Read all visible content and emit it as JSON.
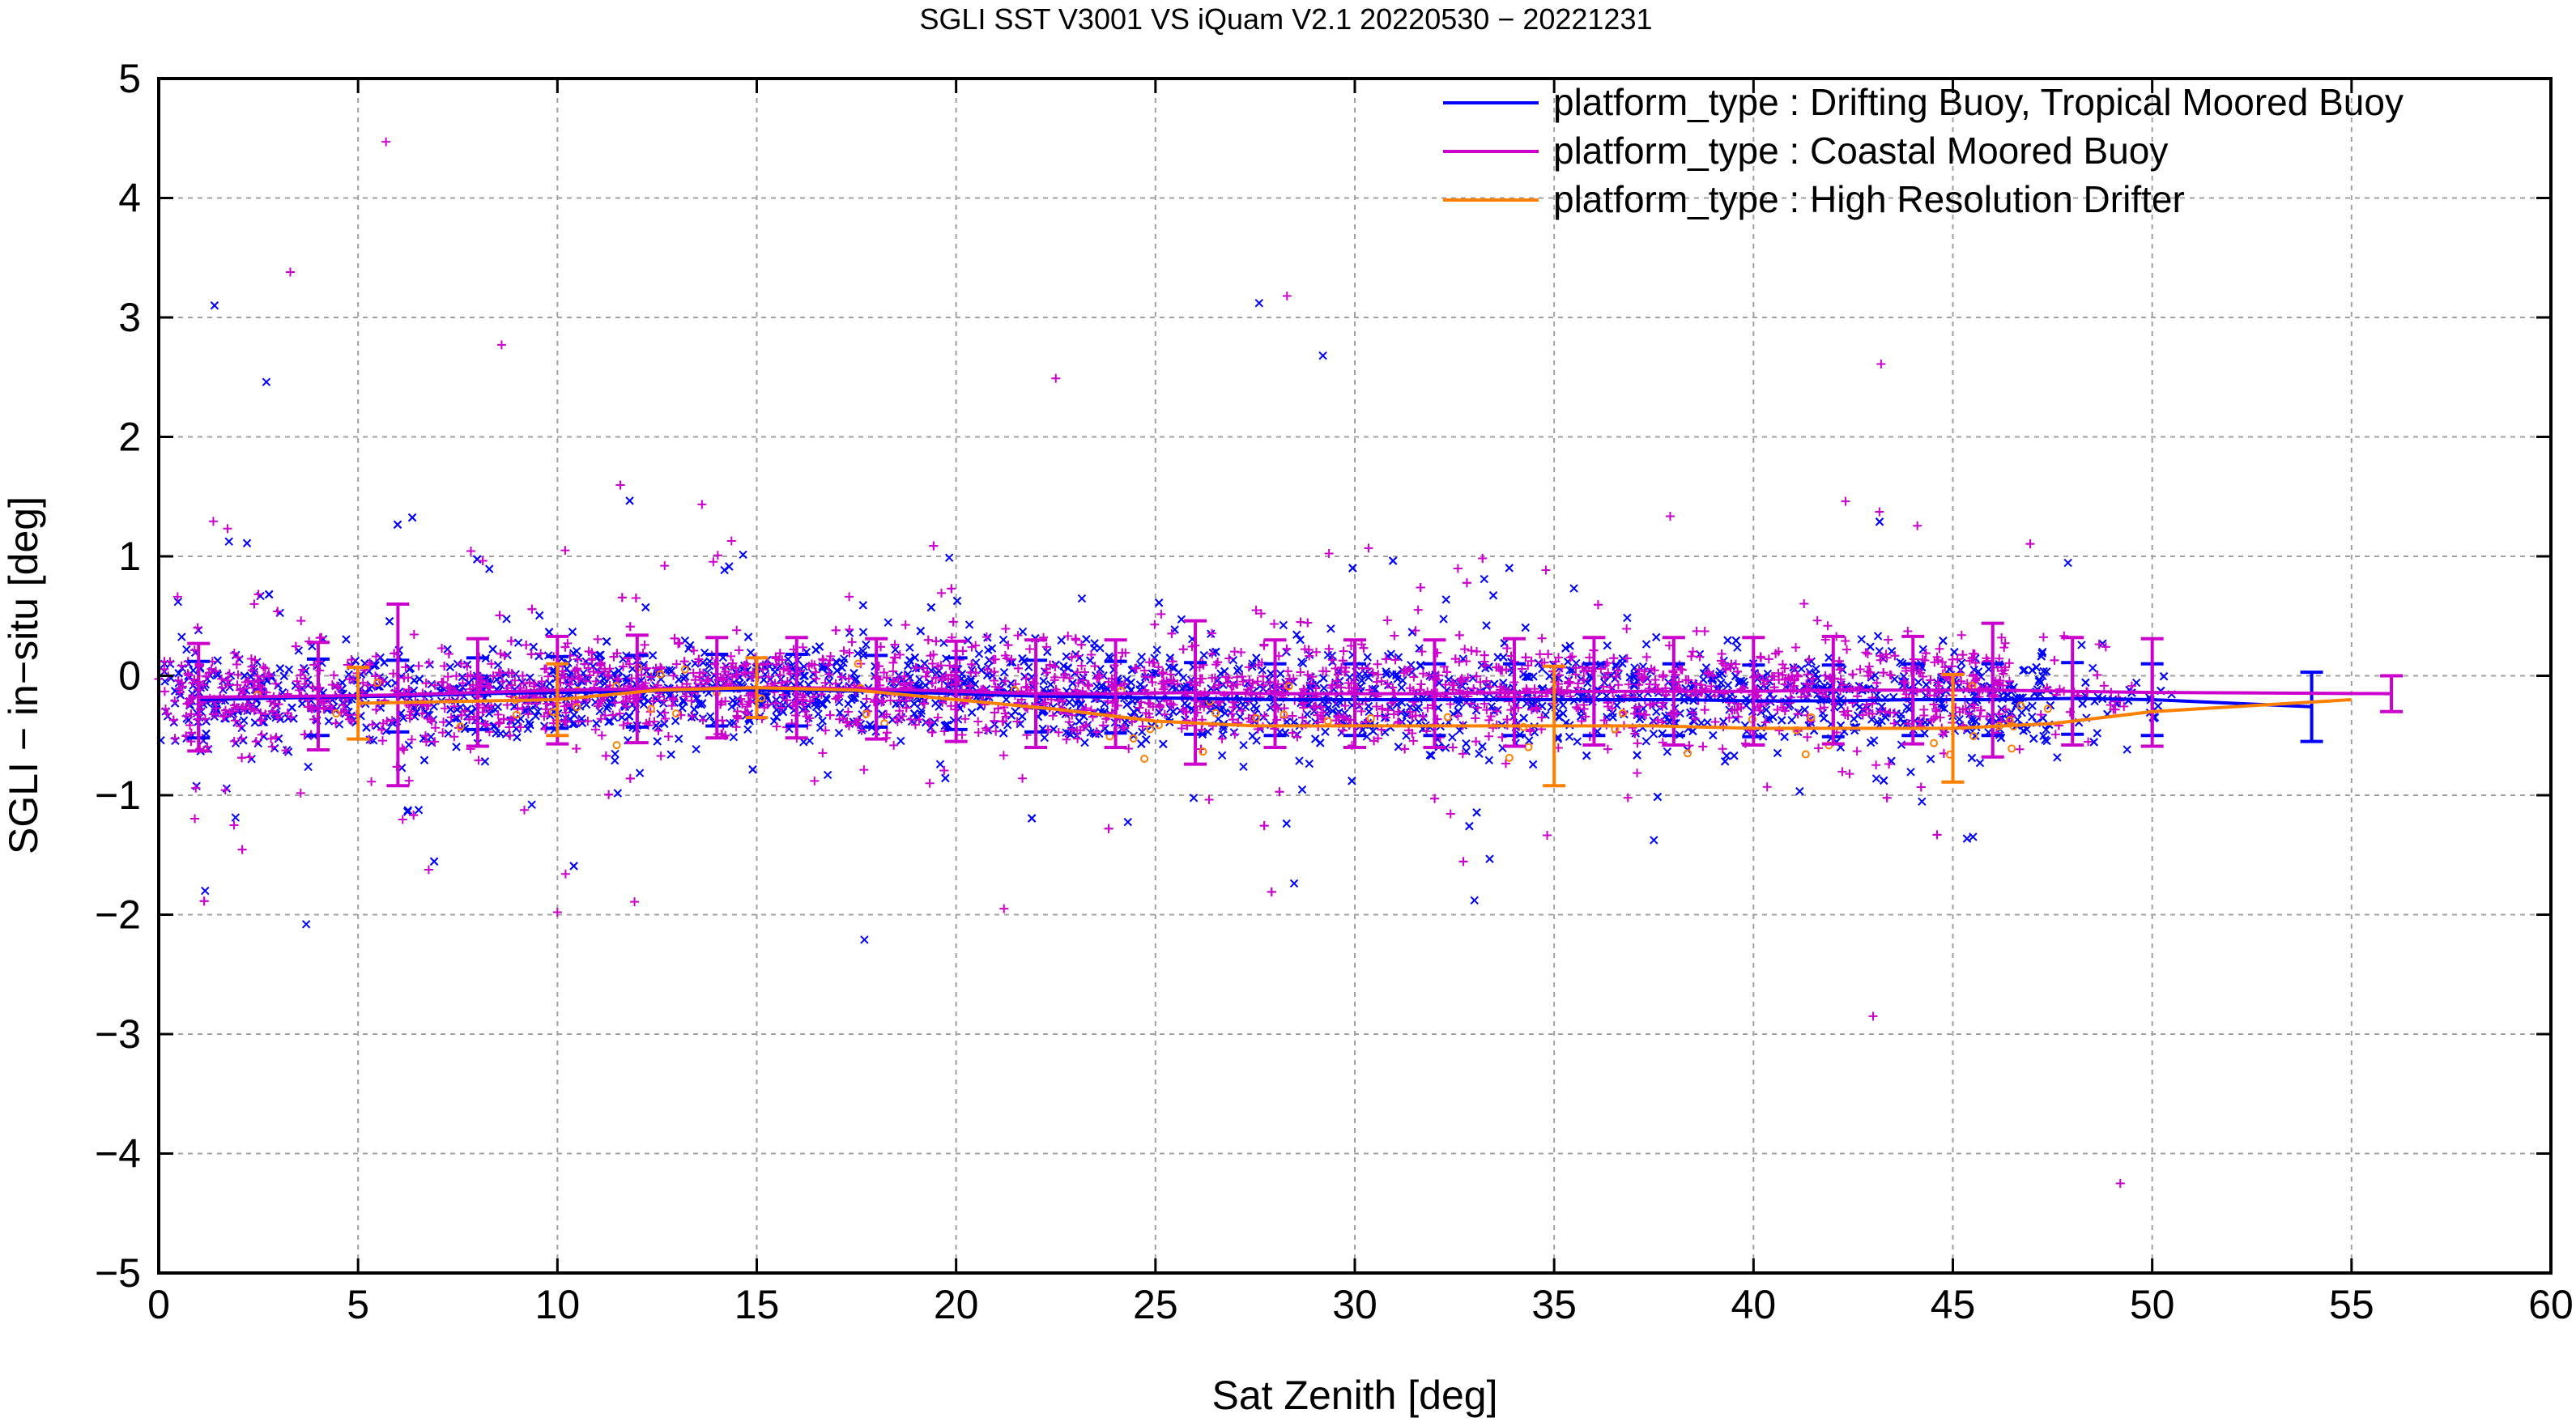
{
  "chart_data": {
    "type": "scatter",
    "title": "SGLI SST V3001 VS iQuam V2.1 20220530 − 20221231",
    "xlabel": "Sat Zenith [deg]",
    "ylabel": "SGLI − in−situ [deg]",
    "xlim": [
      0,
      60
    ],
    "ylim": [
      -5,
      5
    ],
    "xticks": [
      0,
      5,
      10,
      15,
      20,
      25,
      30,
      35,
      40,
      45,
      50,
      55,
      60
    ],
    "yticks": [
      -5,
      -4,
      -3,
      -2,
      -1,
      0,
      1,
      2,
      3,
      4,
      5
    ],
    "xtick_labels": [
      "0",
      "5",
      "10",
      "15",
      "20",
      "25",
      "30",
      "35",
      "40",
      "45",
      "50",
      "55",
      "60"
    ],
    "ytick_labels": [
      "−5",
      "−4",
      "−3",
      "−2",
      "−1",
      "0",
      "1",
      "2",
      "3",
      "4",
      "5"
    ],
    "grid": true,
    "legend_position": "top-right",
    "series": [
      {
        "name": "platform_type : Drifting Buoy, Tropical Moored Buoy",
        "color": "#0000ff",
        "marker": "x",
        "x": [
          1,
          4,
          6,
          8,
          10,
          12,
          14,
          16,
          18,
          20,
          22,
          24,
          26,
          28,
          30,
          32,
          34,
          36,
          38,
          40,
          42,
          44,
          46,
          48,
          50,
          54
        ],
        "y": [
          -0.2,
          -0.18,
          -0.17,
          -0.15,
          -0.14,
          -0.13,
          -0.12,
          -0.12,
          -0.13,
          -0.15,
          -0.17,
          -0.18,
          -0.19,
          -0.2,
          -0.2,
          -0.2,
          -0.2,
          -0.2,
          -0.2,
          -0.21,
          -0.21,
          -0.2,
          -0.2,
          -0.19,
          -0.2,
          -0.26
        ],
        "yerr": [
          0.32,
          0.32,
          0.3,
          0.3,
          0.3,
          0.3,
          0.3,
          0.3,
          0.3,
          0.3,
          0.3,
          0.3,
          0.3,
          0.3,
          0.3,
          0.3,
          0.3,
          0.3,
          0.3,
          0.3,
          0.3,
          0.3,
          0.3,
          0.3,
          0.3,
          0.29
        ]
      },
      {
        "name": "platform_type : Coastal Moored Buoy",
        "color": "#cc00cc",
        "marker": "+",
        "x": [
          1,
          4,
          6,
          8,
          10,
          12,
          14,
          16,
          18,
          20,
          22,
          24,
          26,
          28,
          30,
          32,
          34,
          36,
          38,
          40,
          42,
          44,
          46,
          48,
          50,
          56
        ],
        "y": [
          -0.18,
          -0.17,
          -0.16,
          -0.14,
          -0.12,
          -0.11,
          -0.1,
          -0.1,
          -0.11,
          -0.13,
          -0.15,
          -0.15,
          -0.14,
          -0.15,
          -0.15,
          -0.15,
          -0.14,
          -0.13,
          -0.13,
          -0.13,
          -0.12,
          -0.12,
          -0.12,
          -0.13,
          -0.14,
          -0.15
        ],
        "yerr": [
          0.45,
          0.45,
          0.76,
          0.45,
          0.45,
          0.45,
          0.42,
          0.42,
          0.42,
          0.42,
          0.45,
          0.45,
          0.6,
          0.45,
          0.45,
          0.45,
          0.45,
          0.45,
          0.45,
          0.45,
          0.45,
          0.45,
          0.56,
          0.45,
          0.45,
          0.15
        ]
      },
      {
        "name": "platform_type : High Resolution Drifter",
        "color": "#ff8000",
        "marker": "o",
        "x": [
          5,
          10,
          12.5,
          15,
          17.5,
          20,
          22.5,
          25,
          27.5,
          30,
          32.5,
          35,
          37.5,
          40,
          42.5,
          45,
          47.5,
          50,
          55
        ],
        "y": [
          -0.23,
          -0.2,
          -0.12,
          -0.1,
          -0.12,
          -0.2,
          -0.28,
          -0.38,
          -0.42,
          -0.42,
          -0.42,
          -0.42,
          -0.42,
          -0.44,
          -0.44,
          -0.44,
          -0.4,
          -0.3,
          -0.2
        ],
        "yerr": [
          0.3,
          0.3,
          0.0,
          0.25,
          0.0,
          0.0,
          0.0,
          0.0,
          0.0,
          0.0,
          0.0,
          0.5,
          0.0,
          0.0,
          0.0,
          0.45,
          0.0,
          0.0,
          0.0
        ]
      }
    ],
    "notable_outliers": [
      {
        "series": "platform_type : Coastal Moored Buoy",
        "x": 5.7,
        "y": 4.47
      },
      {
        "series": "platform_type : Drifting Buoy, Tropical Moored Buoy",
        "x": 1.4,
        "y": 3.1
      },
      {
        "series": "platform_type : Coastal Moored Buoy",
        "x": 3.3,
        "y": 3.38
      },
      {
        "series": "platform_type : Coastal Moored Buoy",
        "x": 28.3,
        "y": 3.18
      },
      {
        "series": "platform_type : Drifting Buoy, Tropical Moored Buoy",
        "x": 27.6,
        "y": 3.12
      },
      {
        "series": "platform_type : Coastal Moored Buoy",
        "x": 8.6,
        "y": 2.77
      },
      {
        "series": "platform_type : Drifting Buoy, Tropical Moored Buoy",
        "x": 29.2,
        "y": 2.68
      },
      {
        "series": "platform_type : Coastal Moored Buoy",
        "x": 43.2,
        "y": 2.61
      },
      {
        "series": "platform_type : Drifting Buoy, Tropical Moored Buoy",
        "x": 2.7,
        "y": 2.46
      },
      {
        "series": "platform_type : Coastal Moored Buoy",
        "x": 22.5,
        "y": 2.49
      },
      {
        "series": "platform_type : Drifting Buoy, Tropical Moored Buoy",
        "x": 3.7,
        "y": -2.08
      },
      {
        "series": "platform_type : Drifting Buoy, Tropical Moored Buoy",
        "x": 17.7,
        "y": -2.21
      },
      {
        "series": "platform_type : Coastal Moored Buoy",
        "x": 10.0,
        "y": -1.98
      },
      {
        "series": "platform_type : Coastal Moored Buoy",
        "x": 21.2,
        "y": -1.95
      },
      {
        "series": "platform_type : Drifting Buoy, Tropical Moored Buoy",
        "x": 33.0,
        "y": -1.88
      },
      {
        "series": "platform_type : Coastal Moored Buoy",
        "x": 43.0,
        "y": -2.85
      },
      {
        "series": "platform_type : Coastal Moored Buoy",
        "x": 49.2,
        "y": -4.25
      }
    ]
  }
}
